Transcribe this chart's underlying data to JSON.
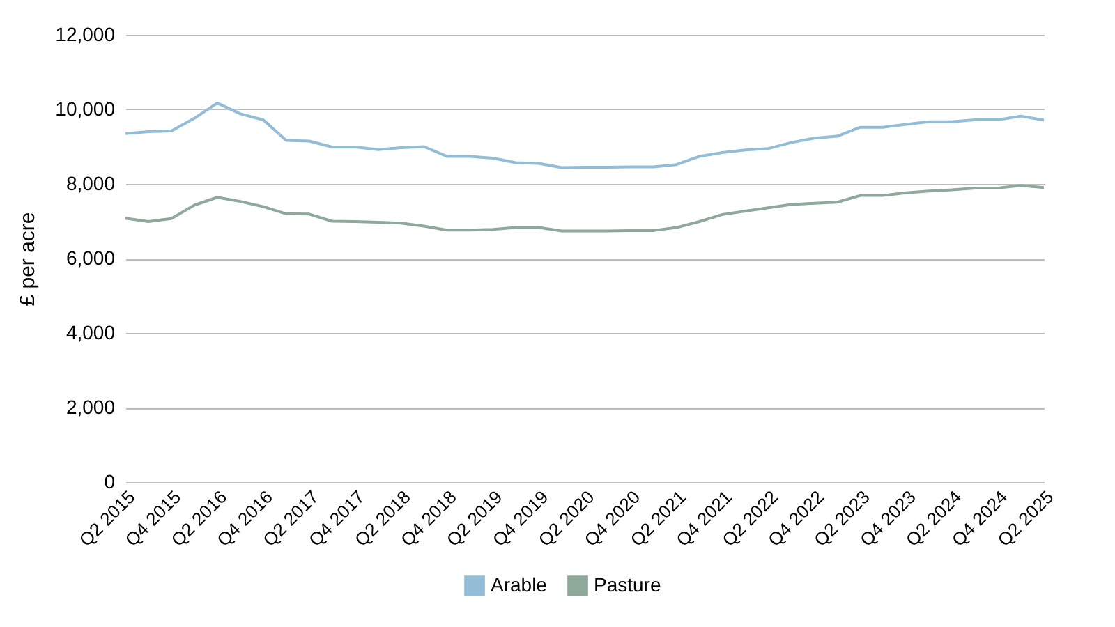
{
  "chart_data": {
    "type": "line",
    "ylabel": "£ per acre",
    "categories": [
      "Q2 2015",
      null,
      "Q4 2015",
      null,
      "Q2 2016",
      null,
      "Q4 2016",
      null,
      "Q2 2017",
      null,
      "Q4 2017",
      null,
      "Q2 2018",
      null,
      "Q4 2018",
      null,
      "Q2 2019",
      null,
      "Q4 2019",
      null,
      "Q2 2020",
      null,
      "Q4 2020",
      null,
      "Q2 2021",
      null,
      "Q4 2021",
      null,
      "Q2 2022",
      null,
      "Q4 2022",
      null,
      "Q2 2023",
      null,
      "Q4 2023",
      null,
      "Q2 2024",
      null,
      "Q4 2024",
      null,
      "Q2 2025"
    ],
    "series": [
      {
        "name": "Arable",
        "color": "#93bcd6",
        "values": [
          9350,
          9400,
          9420,
          9760,
          10170,
          9880,
          9720,
          9170,
          9150,
          8990,
          8990,
          8920,
          8970,
          9000,
          8740,
          8740,
          8690,
          8570,
          8550,
          8440,
          8450,
          8450,
          8460,
          8460,
          8520,
          8740,
          8840,
          8910,
          8950,
          9110,
          9230,
          9280,
          9520,
          9520,
          9600,
          9670,
          9670,
          9720,
          9720,
          9820,
          9710
        ]
      },
      {
        "name": "Pasture",
        "color": "#8ea89a",
        "values": [
          7080,
          6990,
          7070,
          7430,
          7640,
          7530,
          7390,
          7200,
          7190,
          7000,
          6990,
          6970,
          6950,
          6870,
          6760,
          6760,
          6780,
          6830,
          6830,
          6740,
          6740,
          6740,
          6750,
          6750,
          6830,
          6990,
          7180,
          7270,
          7360,
          7450,
          7480,
          7510,
          7690,
          7690,
          7760,
          7810,
          7840,
          7890,
          7890,
          7960,
          7900
        ]
      }
    ],
    "ylim": [
      0,
      12000
    ],
    "yticks": [
      0,
      {
        "value": 2000,
        "label": "2,000"
      },
      {
        "value": 4000,
        "label": "4,000"
      },
      {
        "value": 6000,
        "label": "6,000"
      },
      {
        "value": 8000,
        "label": "8,000"
      },
      {
        "value": 10000,
        "label": "10,000"
      },
      {
        "value": 12000,
        "label": "12,000"
      }
    ],
    "grid": "y",
    "legend": "bottom"
  }
}
